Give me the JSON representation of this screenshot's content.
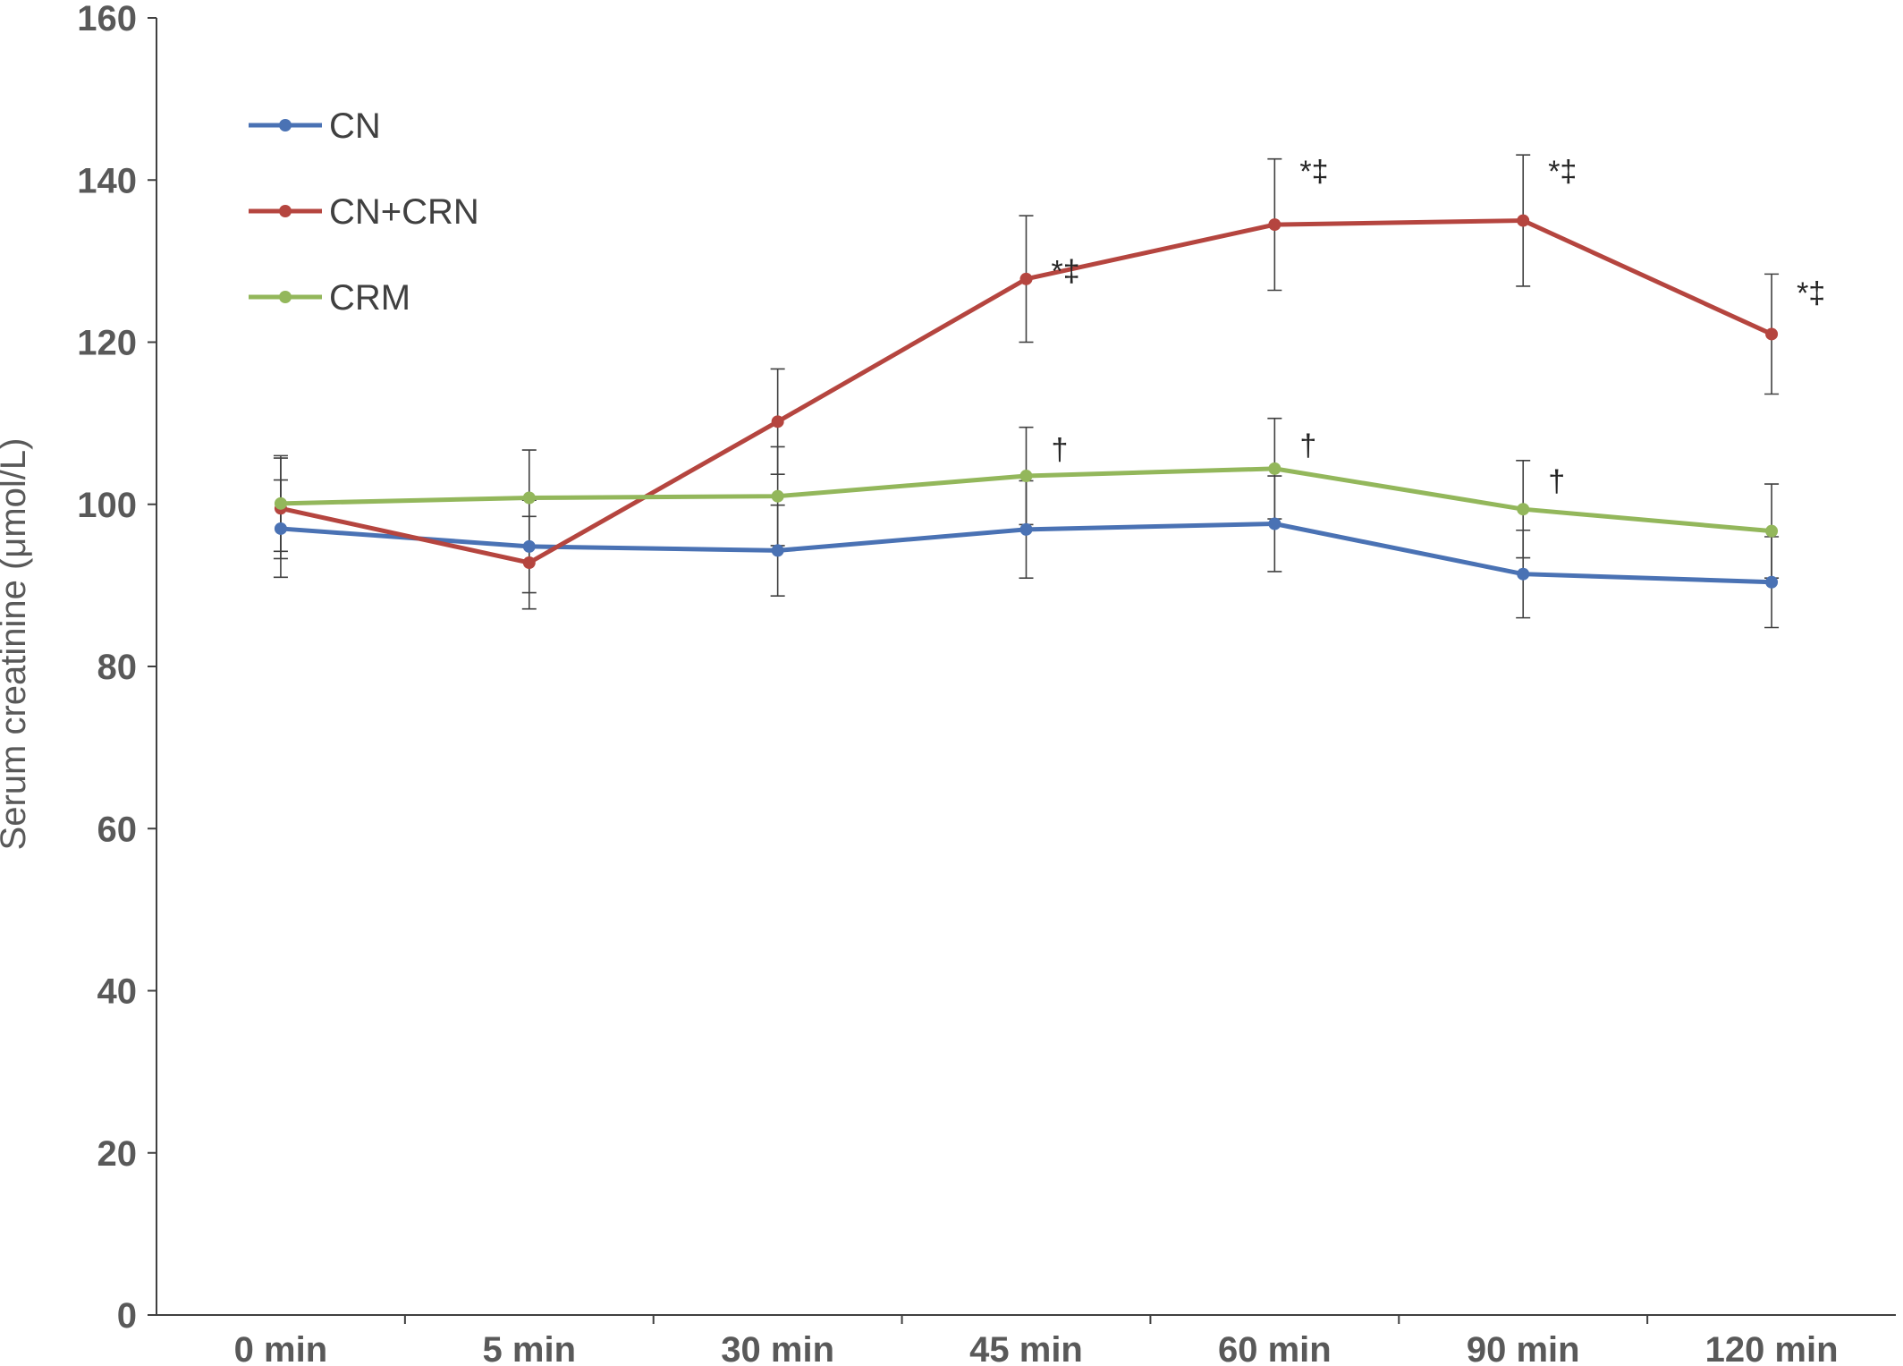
{
  "chart_data": {
    "type": "line",
    "title": "",
    "xlabel": "",
    "ylabel": "Serum creatinine (μmol/L)",
    "ylim": [
      0,
      160
    ],
    "yticks": [
      0,
      20,
      40,
      60,
      80,
      100,
      120,
      140,
      160
    ],
    "categories": [
      "0 min",
      "5 min",
      "30 min",
      "45 min",
      "60 min",
      "90 min",
      "120 min"
    ],
    "grid": false,
    "legend_position": "top-left",
    "series": [
      {
        "name": "CN",
        "color": "#4a72b4",
        "values": [
          97,
          94.8,
          94.3,
          96.9,
          97.6,
          91.4,
          90.4
        ],
        "error": [
          6.0,
          5.7,
          5.6,
          6.0,
          5.9,
          5.4,
          5.6
        ]
      },
      {
        "name": "CN+CRN",
        "color": "#b5453f",
        "values": [
          99.5,
          92.8,
          110.2,
          127.8,
          134.5,
          135.0,
          121.0
        ],
        "error": [
          6.2,
          5.7,
          6.5,
          7.8,
          8.1,
          8.1,
          7.4
        ]
      },
      {
        "name": "CRM",
        "color": "#93b75b",
        "values": [
          100.1,
          100.8,
          101.0,
          103.5,
          104.4,
          99.4,
          96.7
        ],
        "error": [
          5.9,
          5.9,
          6.1,
          6.0,
          6.2,
          6.0,
          5.8
        ]
      }
    ],
    "annotations": [
      {
        "category": "45 min",
        "y": 127.5,
        "text": "*‡"
      },
      {
        "category": "60 min",
        "y": 139.8,
        "text": "*‡"
      },
      {
        "category": "90 min",
        "y": 139.8,
        "text": "*‡"
      },
      {
        "category": "120 min",
        "y": 124.8,
        "text": "*‡"
      },
      {
        "category": "45 min",
        "y": 105.5,
        "text": "†"
      },
      {
        "category": "60 min",
        "y": 106.0,
        "text": "†"
      },
      {
        "category": "90 min",
        "y": 101.6,
        "text": "†"
      }
    ]
  }
}
